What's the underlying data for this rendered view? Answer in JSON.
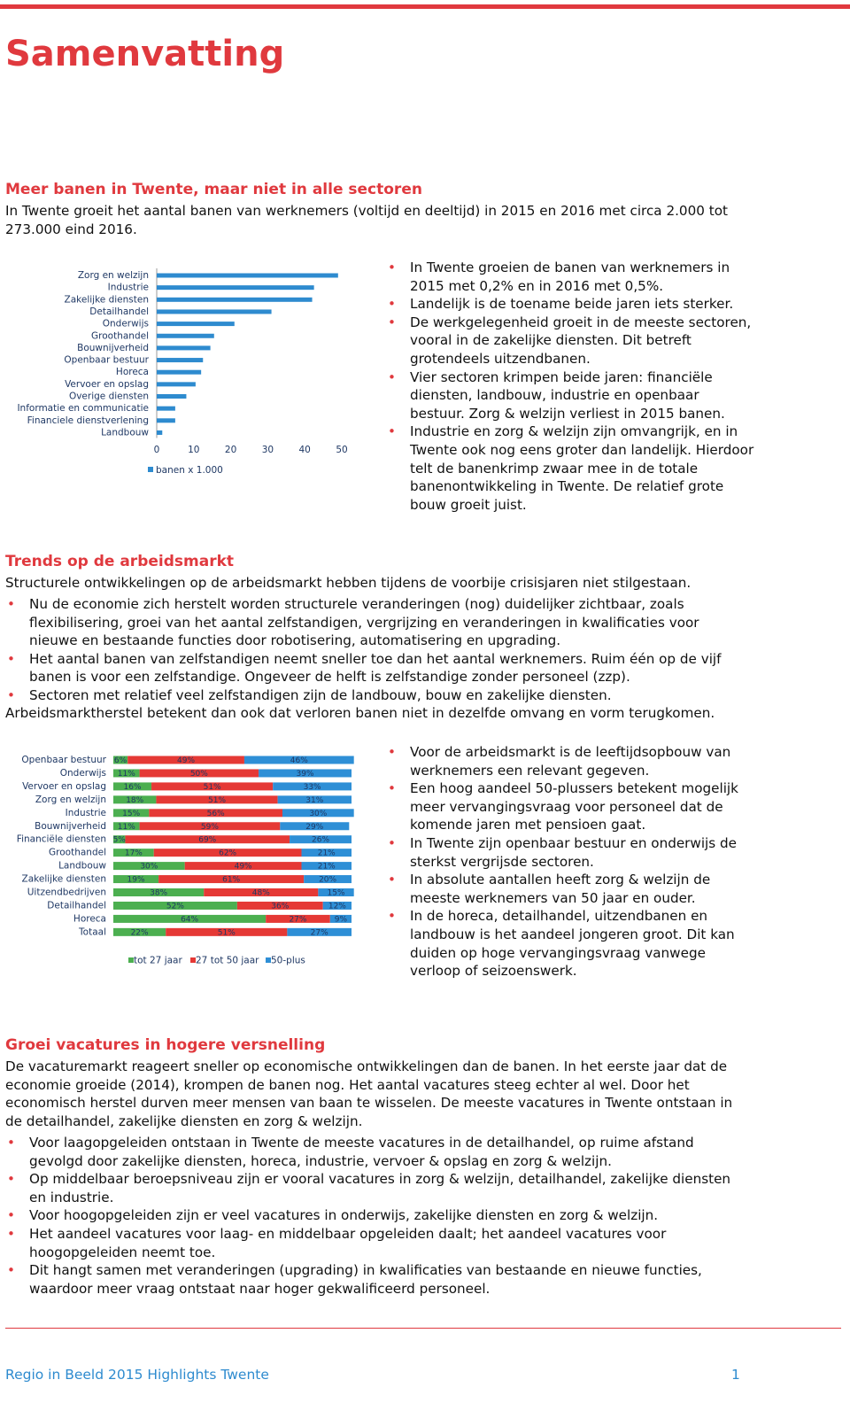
{
  "header": {
    "title": "Samenvatting"
  },
  "sections": [
    {
      "heading": "Meer banen in Twente, maar niet in alle sectoren",
      "intro": "In Twente groeit het aantal banen van werknemers (voltijd en deeltijd) in 2015 en 2016 met circa 2.000 tot 273.000 eind 2016.",
      "bullets": [
        "In Twente groeien de banen van werknemers in 2015 met 0,2% en in 2016 met 0,5%.",
        "Landelijk is de toename beide jaren iets sterker.",
        "De werkgelegenheid groeit in de meeste sectoren, vooral in de zakelijke diensten. Dit betreft grotendeels uitzendbanen.",
        "Vier sectoren krimpen beide jaren: financiële diensten, landbouw, industrie en openbaar bestuur. Zorg & welzijn verliest in 2015 banen.",
        "Industrie en zorg & welzijn zijn omvangrijk, en in Twente ook nog eens groter dan landelijk. Hierdoor telt de banenkrimp zwaar mee in de totale banenontwikkeling in Twente. De relatief grote bouw groeit juist."
      ]
    },
    {
      "heading": "Trends op de arbeidsmarkt",
      "intro": "Structurele ontwikkelingen op de arbeidsmarkt hebben tijdens de voorbije crisisjaren niet stilgestaan.",
      "bullets": [
        "Nu de economie zich herstelt worden structurele veranderingen (nog) duidelijker zichtbaar, zoals flexibilisering, groei van het aantal zelfstandigen, vergrijzing en veranderingen in kwalificaties voor nieuwe en bestaande functies door robotisering, automatisering en upgrading.",
        "Het aantal banen van zelfstandigen neemt sneller toe dan het aantal werknemers. Ruim één op de vijf banen is voor een zelfstandige. Ongeveer de helft is zelfstandige zonder personeel (zzp).",
        "Sectoren met relatief veel zelfstandigen zijn de landbouw, bouw en zakelijke diensten."
      ],
      "closing": "Arbeidsmarktherstel betekent dan ook dat verloren banen niet in dezelfde omvang en vorm terugkomen.",
      "side_bullets": [
        "Voor de arbeidsmarkt is de leeftijdsopbouw van werknemers een relevant gegeven.",
        "Een hoog aandeel 50-plussers betekent mogelijk meer vervangingsvraag voor personeel dat de komende jaren met pensioen gaat.",
        "In Twente zijn openbaar bestuur en onderwijs de sterkst vergrijsde sectoren.",
        "In absolute aantallen heeft zorg & welzijn de meeste werknemers van 50 jaar en ouder.",
        "In de horeca, detailhandel, uitzendbanen en landbouw is het aandeel jongeren groot. Dit kan duiden op hoge vervangingsvraag vanwege verloop of seizoenswerk."
      ]
    },
    {
      "heading": "Groei vacatures in hogere versnelling",
      "intro": "De vacaturemarkt reageert sneller op economische ontwikkelingen dan de banen. In het eerste jaar dat de economie groeide (2014), krompen de banen nog. Het aantal vacatures steeg echter al wel. Door het economisch herstel durven meer mensen van baan te wisselen. De meeste vacatures in Twente ontstaan in de detailhandel, zakelijke diensten en zorg & welzijn.",
      "bullets": [
        "Voor laagopgeleiden ontstaan in Twente de meeste vacatures in de detailhandel, op ruime afstand gevolgd door zakelijke diensten, horeca, industrie, vervoer & opslag en zorg & welzijn.",
        "Op middelbaar beroepsniveau zijn er vooral vacatures in zorg & welzijn, detailhandel, zakelijke diensten en industrie.",
        "Voor hoogopgeleiden zijn er veel vacatures in onderwijs, zakelijke diensten en zorg & welzijn.",
        "Het aandeel vacatures voor laag- en middelbaar opgeleiden daalt; het aandeel vacatures voor hoogopgeleiden neemt toe.",
        "Dit hangt samen met veranderingen (upgrading) in kwalificaties van bestaande en nieuwe functies, waardoor meer vraag ontstaat naar hoger gekwalificeerd personeel."
      ]
    }
  ],
  "chart_data": [
    {
      "type": "bar",
      "orientation": "horizontal",
      "categories": [
        "Zorg en welzijn",
        "Industrie",
        "Zakelijke diensten",
        "Detailhandel",
        "Onderwijs",
        "Groothandel",
        "Bouwnijverheid",
        "Openbaar bestuur",
        "Horeca",
        "Vervoer en opslag",
        "Overige diensten",
        "Informatie en communicatie",
        "Financiele dienstverlening",
        "Landbouw"
      ],
      "series": [
        {
          "name": "banen x 1.000",
          "color": "#2e8bcf",
          "values": [
            49,
            42.5,
            42,
            31,
            21,
            15.5,
            14.5,
            12.5,
            12,
            10.5,
            8,
            5,
            5,
            1.5
          ]
        }
      ],
      "xlim": [
        0,
        50
      ],
      "xticks": [
        0,
        10,
        20,
        30,
        40,
        50
      ],
      "grid": false
    },
    {
      "type": "stacked_bar",
      "orientation": "horizontal",
      "categories": [
        "Openbaar bestuur",
        "Onderwijs",
        "Vervoer en opslag",
        "Zorg en welzijn",
        "Industrie",
        "Bouwnijverheid",
        "Financiële diensten",
        "Groothandel",
        "Landbouw",
        "Zakelijke diensten",
        "Uitzendbedrijven",
        "Detailhandel",
        "Horeca",
        "Totaal"
      ],
      "series": [
        {
          "name": "tot 27 jaar",
          "color": "#4caf50",
          "values": [
            6,
            11,
            16,
            18,
            15,
            11,
            5,
            17,
            30,
            19,
            38,
            52,
            64,
            22
          ],
          "value_labels": [
            "6%",
            "11%",
            "16%",
            "18%",
            "15%",
            "11%",
            "5%",
            "17%",
            "30%",
            "19%",
            "38%",
            "52%",
            "64%",
            "22%"
          ]
        },
        {
          "name": "27 tot 50 jaar",
          "color": "#e53935",
          "values": [
            49,
            50,
            51,
            51,
            56,
            59,
            69,
            62,
            49,
            61,
            48,
            36,
            27,
            51
          ],
          "value_labels": [
            "49%",
            "50%",
            "51%",
            "51%",
            "56%",
            "59%",
            "69%",
            "62%",
            "49%",
            "61%",
            "48%",
            "36%",
            "27%",
            "51%"
          ]
        },
        {
          "name": "50-plus",
          "color": "#2e8fd6",
          "values": [
            46,
            39,
            33,
            31,
            30,
            29,
            26,
            21,
            21,
            20,
            15,
            12,
            9,
            27
          ],
          "value_labels": [
            "46%",
            "39%",
            "33%",
            "31%",
            "30%",
            "29%",
            "26%",
            "21%",
            "21%",
            "20%",
            "15%",
            "12%",
            "9%",
            "27%"
          ]
        }
      ],
      "xlim": [
        0,
        100
      ]
    }
  ],
  "footer": {
    "text": "Regio in Beeld 2015 Highlights Twente",
    "page": "1"
  }
}
